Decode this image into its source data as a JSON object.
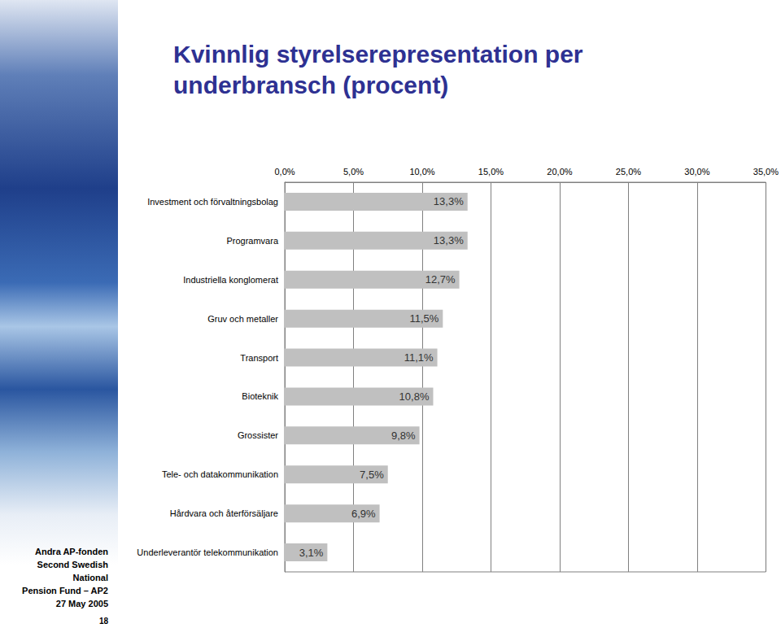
{
  "chart_data": {
    "type": "bar",
    "orientation": "horizontal",
    "title": "Kvinnlig styrelserepresentation per underbransch (procent)",
    "categories": [
      "Investment och förvaltningsbolag",
      "Programvara",
      "Industriella konglomerat",
      "Gruv och metaller",
      "Transport",
      "Bioteknik",
      "Grossister",
      "Tele- och datakommunikation",
      "Hårdvara och återförsäljare",
      "Underleverantör telekommunikation"
    ],
    "values": [
      13.3,
      13.3,
      12.7,
      11.5,
      11.1,
      10.8,
      9.8,
      7.5,
      6.9,
      3.1
    ],
    "value_labels": [
      "13,3%",
      "13,3%",
      "12,7%",
      "11,5%",
      "11,1%",
      "10,8%",
      "9,8%",
      "7,5%",
      "6,9%",
      "3,1%"
    ],
    "data_labels": true,
    "color": "#c0c0c0",
    "xlim": [
      0,
      35
    ],
    "xticks": [
      {
        "value": 0,
        "label": "0,0%"
      },
      {
        "value": 5,
        "label": "5,0%"
      },
      {
        "value": 10,
        "label": "10,0%"
      },
      {
        "value": 15,
        "label": "15,0%"
      },
      {
        "value": 20,
        "label": "20,0%"
      },
      {
        "value": 25,
        "label": "25,0%"
      },
      {
        "value": 30,
        "label": "30,0%"
      },
      {
        "value": 35,
        "label": "35,0%"
      }
    ],
    "grid": true
  },
  "slide": {
    "organization": [
      "Andra AP-fonden",
      "Second Swedish National",
      "Pension Fund – AP2"
    ],
    "date": "27 May 2005",
    "page": "18"
  }
}
